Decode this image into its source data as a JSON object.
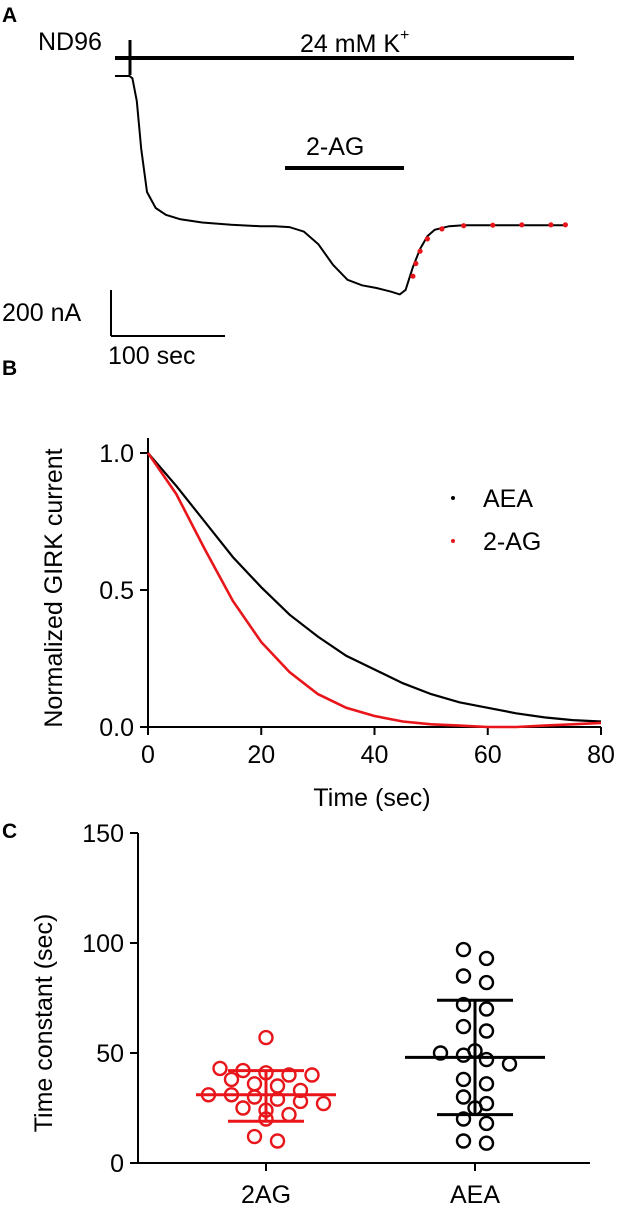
{
  "panels": {
    "a_letter": "A",
    "b_letter": "B",
    "c_letter": "C"
  },
  "colors": {
    "aea": "#000000",
    "two_ag": "#e8161b"
  },
  "chart_data": [
    {
      "type": "line",
      "panel": "A",
      "label_nd96": "ND96",
      "label_k": "24 mM K",
      "label_k_sup": "+",
      "drug_label": "2-AG",
      "scale_y": "200 nA",
      "scale_x": "100 sec",
      "series": [
        {
          "name": "recording",
          "color": "#000000",
          "t": [
            0,
            5,
            10,
            12,
            15,
            18,
            22,
            28,
            35,
            45,
            60,
            80,
            100,
            110,
            120,
            130,
            140,
            150,
            160,
            170,
            180,
            190,
            196,
            200,
            205,
            210,
            215,
            220,
            230,
            240,
            250,
            260,
            270,
            280,
            290,
            300,
            310
          ],
          "i": [
            0,
            0,
            0,
            -5,
            -55,
            -160,
            -255,
            -290,
            -305,
            -315,
            -322,
            -327,
            -330,
            -330,
            -332,
            -342,
            -370,
            -415,
            -448,
            -460,
            -466,
            -474,
            -480,
            -470,
            -420,
            -380,
            -352,
            -338,
            -330,
            -328,
            -328,
            -328,
            -328,
            -328,
            -328,
            -328,
            -328
          ]
        },
        {
          "name": "fit",
          "color": "#e8161b",
          "t": [
            205,
            207,
            210,
            215,
            225,
            240,
            260,
            280,
            300,
            310
          ],
          "i": [
            -440,
            -412,
            -385,
            -358,
            -336,
            -329,
            -328,
            -327,
            -327,
            -327
          ]
        }
      ],
      "k_bar": [
        5,
        310
      ],
      "drug_bar": [
        120,
        200
      ],
      "ylim": [
        -520,
        40
      ]
    },
    {
      "type": "line",
      "panel": "B",
      "xlabel": "Time (sec)",
      "ylabel": "Normalized GIRK current",
      "xlim": [
        0,
        80
      ],
      "ylim": [
        0,
        1.0
      ],
      "xticks": [
        "0",
        "20",
        "40",
        "60",
        "80"
      ],
      "yticks": [
        "0.0",
        "0.5",
        "1.0"
      ],
      "legend_position": "top-right",
      "series": [
        {
          "name": "AEA",
          "color": "#000000",
          "x": [
            0,
            5,
            10,
            15,
            20,
            25,
            30,
            35,
            40,
            45,
            50,
            55,
            60,
            65,
            70,
            75,
            80
          ],
          "y": [
            1.0,
            0.88,
            0.75,
            0.62,
            0.51,
            0.41,
            0.33,
            0.26,
            0.21,
            0.16,
            0.12,
            0.09,
            0.07,
            0.05,
            0.035,
            0.025,
            0.02
          ]
        },
        {
          "name": "2-AG",
          "color": "#e8161b",
          "x": [
            0,
            5,
            10,
            15,
            20,
            25,
            30,
            35,
            40,
            45,
            50,
            55,
            60,
            65,
            70,
            75,
            80
          ],
          "y": [
            1.0,
            0.85,
            0.65,
            0.46,
            0.31,
            0.2,
            0.12,
            0.07,
            0.04,
            0.02,
            0.01,
            0.005,
            0.0,
            0.0,
            0.005,
            0.01,
            0.015
          ]
        }
      ]
    },
    {
      "type": "scatter",
      "panel": "C",
      "ylabel": "Time constant  (sec)",
      "ylim": [
        0,
        150
      ],
      "yticks": [
        "0",
        "50",
        "100",
        "150"
      ],
      "categories": [
        "2AG",
        "AEA"
      ],
      "groups": [
        {
          "category": "2AG",
          "color": "#e8161b",
          "values": [
            57,
            43,
            42,
            41,
            40,
            40,
            38,
            36,
            35,
            33,
            31,
            31,
            30,
            29,
            28,
            27,
            25,
            24,
            22,
            20,
            12,
            10
          ],
          "mean": 31,
          "sd_low": 19,
          "sd_high": 42
        },
        {
          "category": "AEA",
          "color": "#000000",
          "values": [
            97,
            93,
            85,
            82,
            72,
            70,
            62,
            60,
            51,
            50,
            49,
            47,
            45,
            38,
            36,
            30,
            27,
            25,
            20,
            18,
            10,
            9
          ],
          "mean": 48,
          "sd_low": 22,
          "sd_high": 74
        }
      ]
    }
  ]
}
